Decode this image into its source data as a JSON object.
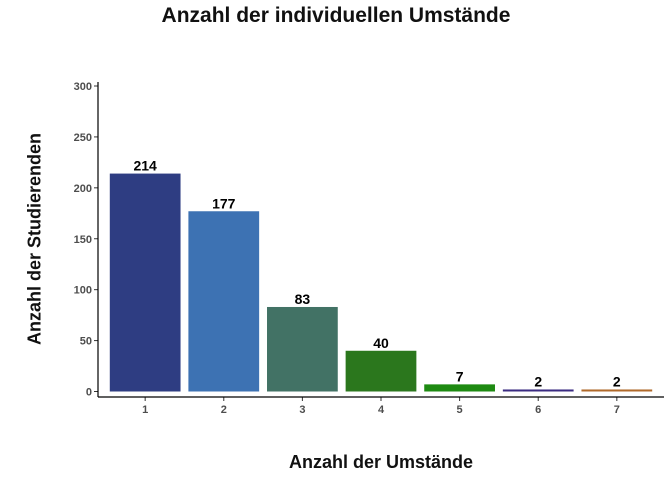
{
  "chart_data": {
    "type": "bar",
    "title": "Anzahl der individuellen Umstände",
    "xlabel": "Anzahl der Umstände",
    "ylabel": "Anzahl der Studierenden",
    "categories": [
      "1",
      "2",
      "3",
      "4",
      "5",
      "6",
      "7"
    ],
    "values": [
      214,
      177,
      83,
      40,
      7,
      2,
      2
    ],
    "data_labels": [
      "214",
      "177",
      "83",
      "40",
      "7",
      "2",
      "2"
    ],
    "colors": [
      "#2e3d82",
      "#3d72b3",
      "#427265",
      "#2b771d",
      "#1e8a12",
      "#3b2c82",
      "#b06a2b"
    ],
    "ylim": [
      0,
      300
    ],
    "yticks": [
      0,
      50,
      100,
      150,
      200,
      250,
      300
    ],
    "ytick_labels": [
      "0",
      "50",
      "100",
      "150",
      "200",
      "250",
      "300"
    ],
    "grid": false,
    "legend": "none"
  }
}
